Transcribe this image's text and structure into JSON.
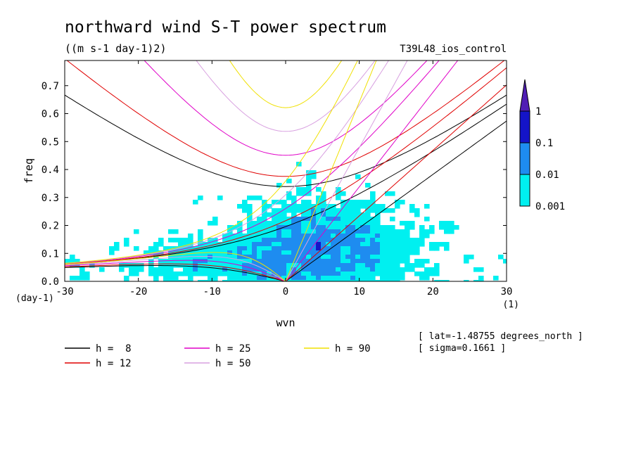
{
  "chart_data": {
    "type": "heatmap",
    "title": "northward wind S-T power spectrum",
    "subtitle": "((m s-1 day-1)2)",
    "run_label": "T39L48_ios_control",
    "xlabel": "wvn",
    "ylabel": "freq",
    "x_unit": "(1)",
    "y_unit": "(day-1)",
    "xlim": [
      -30,
      30
    ],
    "ylim": [
      0,
      0.79
    ],
    "x_ticks": [
      -30,
      -20,
      -10,
      0,
      10,
      20,
      30
    ],
    "x_tick_labels": [
      "-30",
      "-20",
      "-10",
      "0",
      "10",
      "20",
      "30"
    ],
    "y_ticks": [
      0,
      0.1,
      0.2,
      0.3,
      0.4,
      0.5,
      0.6,
      0.7
    ],
    "y_tick_labels": [
      "0.0",
      "0.1",
      "0.2",
      "0.3",
      "0.4",
      "0.5",
      "0.6",
      "0.7"
    ],
    "colorbar": {
      "levels": [
        0.001,
        0.01,
        0.1,
        1
      ],
      "labels": [
        "0.001",
        "0.01",
        "0.1",
        "1"
      ],
      "colors": [
        "#00f0f0",
        "#1e8cf0",
        "#1414c8",
        "#501eb4"
      ],
      "scale": "log"
    },
    "dispersion_curves": [
      {
        "label": "h =  8",
        "h": 8,
        "color": "#000000"
      },
      {
        "label": "h = 12",
        "h": 12,
        "color": "#e00000"
      },
      {
        "label": "h = 25",
        "h": 25,
        "color": "#e000c8"
      },
      {
        "label": "h = 50",
        "h": 50,
        "color": "#d8a0e0"
      },
      {
        "label": "h = 90",
        "h": 90,
        "color": "#f0e000"
      }
    ],
    "annotations": [
      "[ lat=-1.48755 degrees_north ]",
      "[ sigma=0.1661 ]"
    ],
    "grid": false
  }
}
